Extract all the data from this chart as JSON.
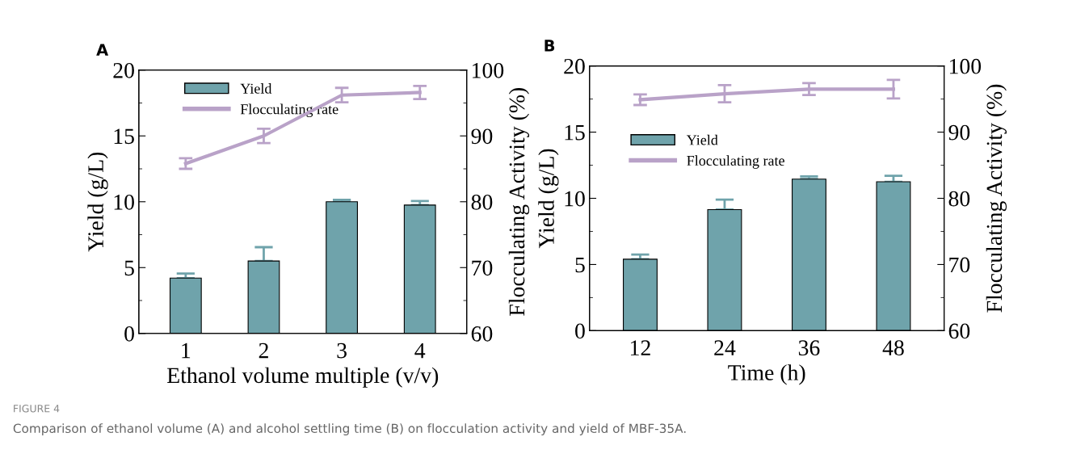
{
  "chart_data": [
    {
      "type": "bar",
      "title": "A",
      "xlabel": "Ethanol volume multiple (v/v)",
      "ylabel": "Yield (g/L)",
      "y2label": "Flocculating Activity (%)",
      "categories": [
        "1",
        "2",
        "3",
        "4"
      ],
      "series": [
        {
          "name": "Yield",
          "color": "#6fa3ab",
          "values": [
            4.2,
            5.5,
            10.0,
            9.75
          ],
          "errors": [
            [
              4.2,
              4.55
            ],
            [
              5.5,
              6.55
            ],
            [
              10.0,
              10.15
            ],
            [
              9.75,
              10.05
            ]
          ]
        },
        {
          "name": "Flocculating rate",
          "type": "line",
          "axis": "y2",
          "color": "#b9a2c8",
          "values": [
            85.8,
            90.0,
            96.2,
            96.6
          ],
          "errors": [
            0.8,
            1.1,
            1.1,
            1.0
          ]
        }
      ],
      "ylim": [
        0,
        20
      ],
      "yticks": [
        0,
        5,
        10,
        15,
        20
      ],
      "y2lim": [
        60,
        100
      ],
      "y2ticks": [
        60,
        70,
        80,
        90,
        100
      ],
      "legend": "top left",
      "grid": false,
      "annotations": [
        "FIGURE 4",
        "Comparison of ethanol volume (A) and alcohol settling time (B) on flocculation activity and yield of MBF-35A."
      ]
    },
    {
      "type": "bar",
      "title": "B",
      "xlabel": "Time (h)",
      "ylabel": "Yield (g/L)",
      "y2label": "Flocculating Activity (%)",
      "categories": [
        "12",
        "24",
        "36",
        "48"
      ],
      "series": [
        {
          "name": "Yield",
          "color": "#6fa3ab",
          "values": [
            5.4,
            9.15,
            11.45,
            11.25
          ],
          "errors": [
            [
              5.4,
              5.75
            ],
            [
              9.15,
              9.9
            ],
            [
              11.45,
              11.65
            ],
            [
              11.25,
              11.7
            ]
          ]
        },
        {
          "name": "Flocculating rate",
          "type": "line",
          "axis": "y2",
          "color": "#b9a2c8",
          "values": [
            94.9,
            95.8,
            96.5,
            96.5
          ],
          "errors": [
            0.8,
            1.3,
            0.9,
            1.4
          ]
        }
      ],
      "ylim": [
        0,
        20
      ],
      "yticks": [
        0,
        5,
        10,
        15,
        20
      ],
      "y2lim": [
        60,
        100
      ],
      "y2ticks": [
        60,
        70,
        80,
        90,
        100
      ],
      "legend": "left",
      "grid": false
    }
  ]
}
